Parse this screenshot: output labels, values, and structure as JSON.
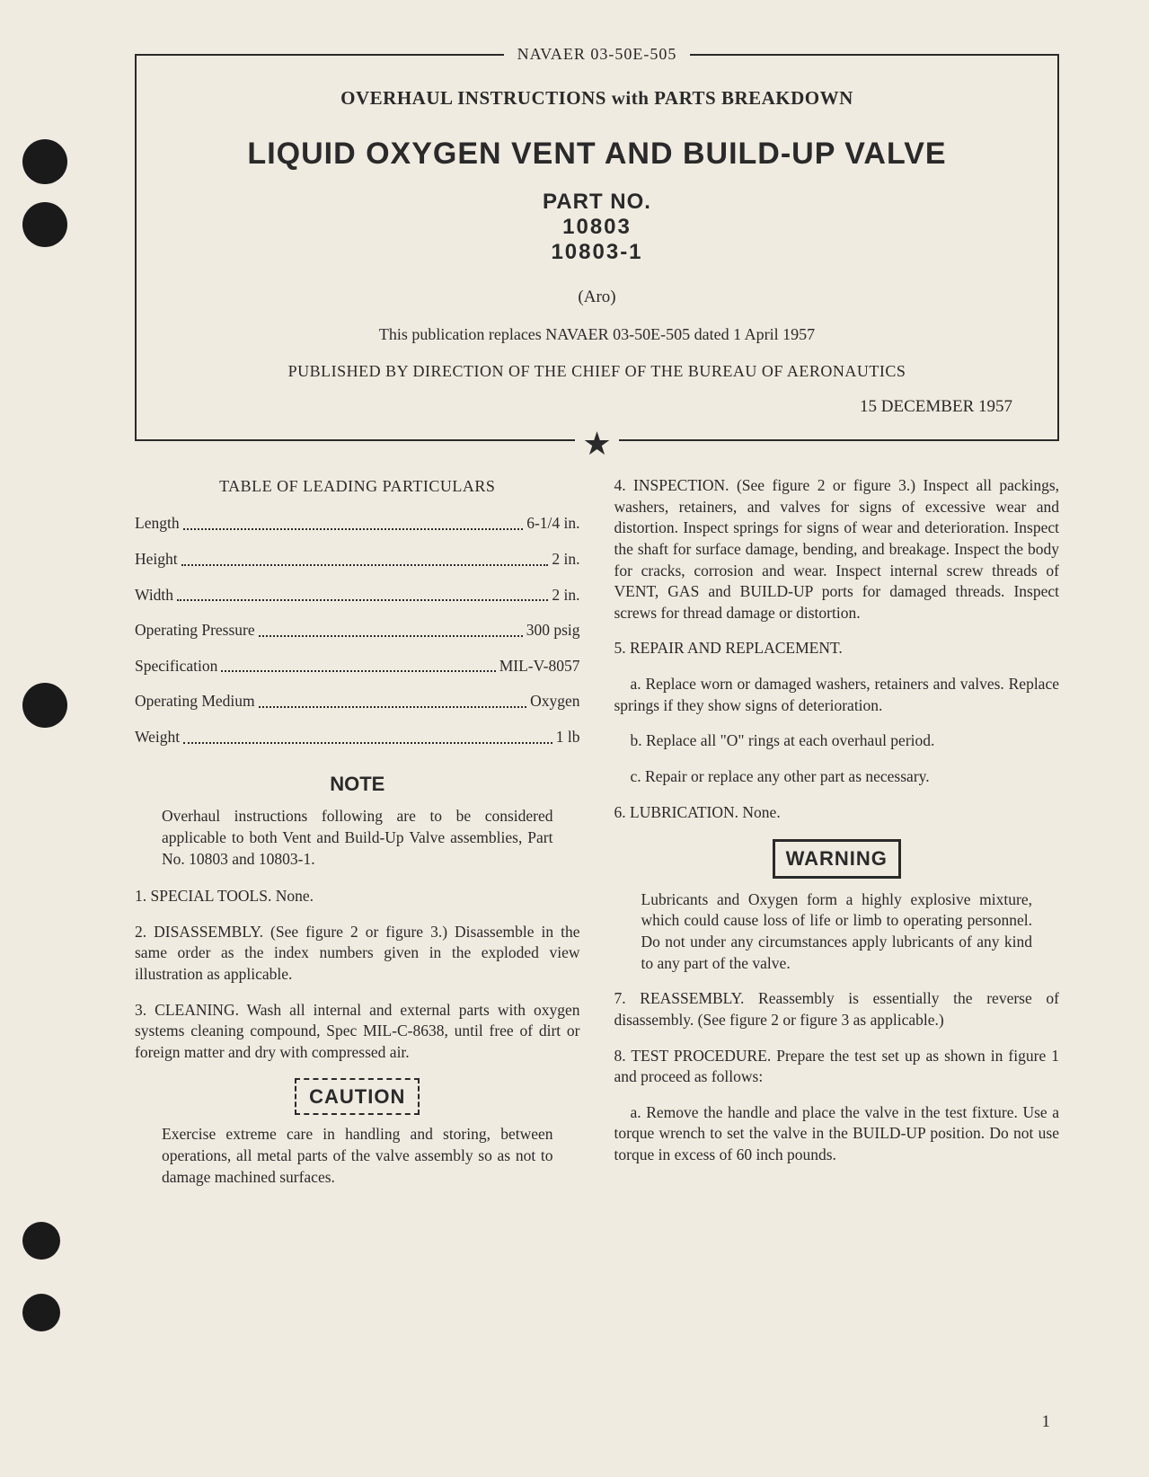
{
  "doc_id": "NAVAER 03-50E-505",
  "header": {
    "subtitle": "OVERHAUL INSTRUCTIONS with PARTS BREAKDOWN",
    "title": "LIQUID OXYGEN VENT AND BUILD-UP VALVE",
    "part_no_label": "PART NO.",
    "part_nos": [
      "10803",
      "10803-1"
    ],
    "manufacturer": "(Aro)",
    "replaces": "This publication replaces NAVAER 03-50E-505 dated 1 April 1957",
    "published_by": "PUBLISHED BY DIRECTION OF THE CHIEF OF THE BUREAU OF AERONAUTICS",
    "date": "15 DECEMBER 1957"
  },
  "particulars": {
    "heading": "TABLE OF LEADING PARTICULARS",
    "rows": [
      {
        "label": "Length",
        "value": "6-1/4 in."
      },
      {
        "label": "Height",
        "value": "2 in."
      },
      {
        "label": "Width",
        "value": "2 in."
      },
      {
        "label": "Operating Pressure",
        "value": "300 psig"
      },
      {
        "label": "Specification",
        "value": "MIL-V-8057"
      },
      {
        "label": "Operating Medium",
        "value": "Oxygen"
      },
      {
        "label": "Weight",
        "value": "1 lb"
      }
    ]
  },
  "note": {
    "heading": "NOTE",
    "body": "Overhaul instructions following are to be considered applicable to both Vent and Build-Up Valve assemblies, Part No. 10803 and 10803-1."
  },
  "sections": {
    "s1": "1.  SPECIAL TOOLS.  None.",
    "s2": "2.  DISASSEMBLY.  (See figure 2 or figure 3.)  Disassemble in the same order as the index numbers given in the exploded view illustration as applicable.",
    "s3": "3.  CLEANING.  Wash all internal and external parts with oxygen systems cleaning compound, Spec MIL-C-8638, until free of dirt or foreign matter and dry with compressed air.",
    "caution": {
      "label": "CAUTION",
      "body": "Exercise extreme care in handling and storing, between operations, all metal parts of the valve assembly so as not to damage machined surfaces."
    },
    "s4": "4.  INSPECTION.  (See figure 2 or figure 3.)  Inspect all packings, washers, retainers, and valves for signs of excessive wear and distortion. Inspect springs for signs of wear and deterioration. Inspect the shaft for surface damage, bending, and breakage. Inspect the body for cracks, corrosion and wear. Inspect internal screw threads of VENT, GAS and BUILD-UP ports for damaged threads.  Inspect screws for thread damage or distortion.",
    "s5": "5.  REPAIR AND REPLACEMENT.",
    "s5a": "a.  Replace worn or damaged washers, retainers and valves.  Replace springs if they show signs of deterioration.",
    "s5b": "b.  Replace all \"O\" rings at each overhaul period.",
    "s5c": "c.  Repair or replace any other part as necessary.",
    "s6": "6.  LUBRICATION.  None.",
    "warning": {
      "label": "WARNING",
      "body": "Lubricants and Oxygen form a highly explosive mixture, which could cause loss of life or limb to operating personnel. Do not under any circumstances apply lubricants of any kind to any part of the valve."
    },
    "s7": "7.  REASSEMBLY.  Reassembly is essentially the reverse of disassembly.  (See figure 2 or figure 3 as applicable.)",
    "s8": "8.  TEST PROCEDURE.  Prepare the test set up as shown in figure 1 and proceed as follows:",
    "s8a": "a.  Remove the handle and place the valve in the test fixture.  Use a torque wrench to set the valve in the BUILD-UP position.  Do not use torque in excess of 60 inch pounds."
  },
  "page_number": "1",
  "colors": {
    "paper": "#f0ebe0",
    "ink": "#2a2a2a",
    "hole": "#1a1a1a"
  },
  "typography": {
    "body_font": "Georgia, Times New Roman, serif",
    "display_font": "Arial, sans-serif",
    "body_size_pt": 17.5,
    "title_size_pt": 34
  }
}
